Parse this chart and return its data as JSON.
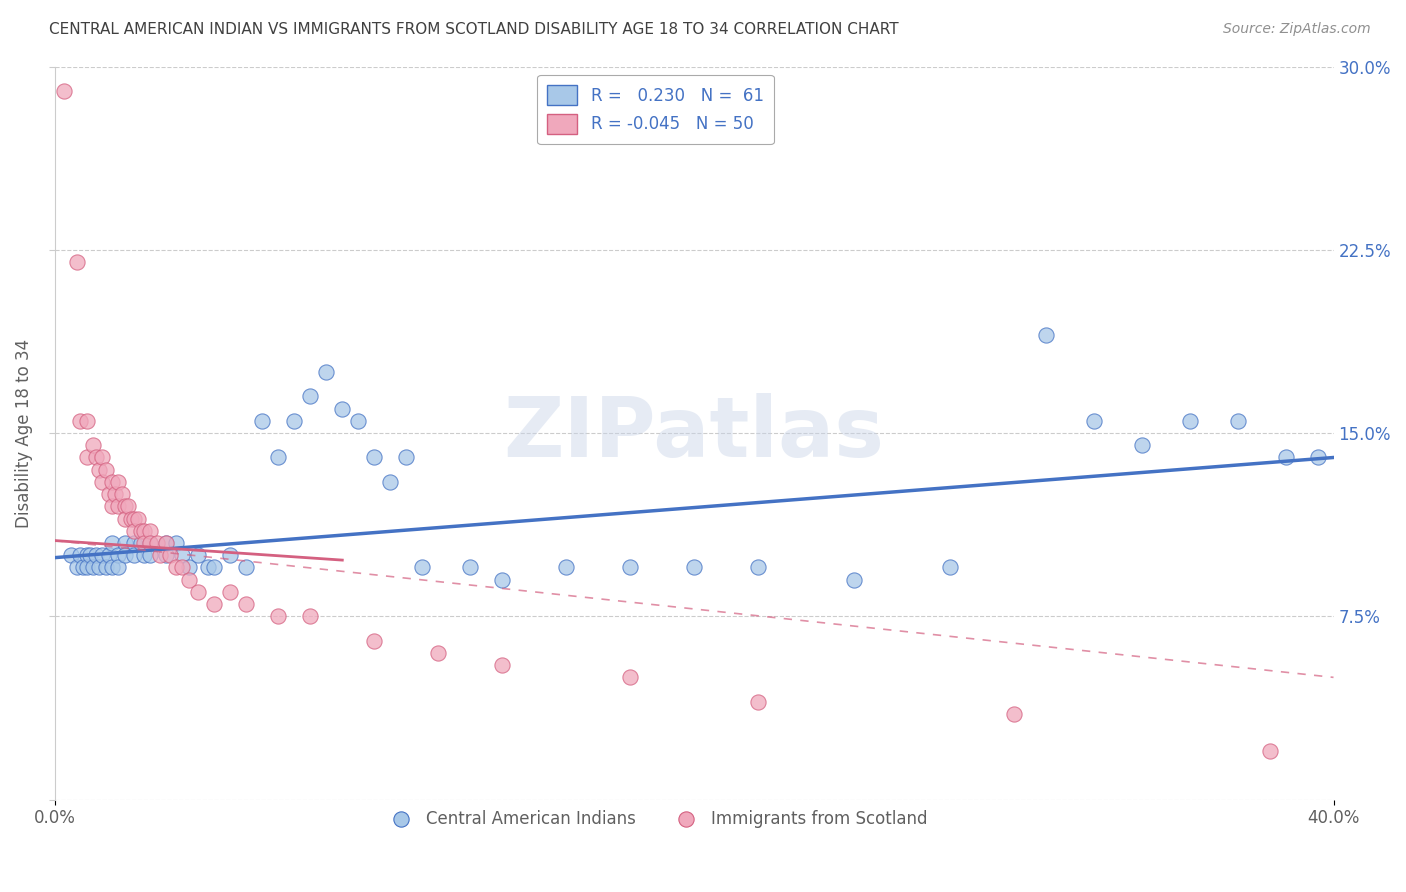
{
  "title": "CENTRAL AMERICAN INDIAN VS IMMIGRANTS FROM SCOTLAND DISABILITY AGE 18 TO 34 CORRELATION CHART",
  "source": "Source: ZipAtlas.com",
  "ylabel": "Disability Age 18 to 34",
  "watermark": "ZIPatlas",
  "legend1_label": "R =   0.230   N =  61",
  "legend2_label": "R = -0.045   N = 50",
  "legend_bottom1": "Central American Indians",
  "legend_bottom2": "Immigrants from Scotland",
  "xlim": [
    0.0,
    0.4
  ],
  "ylim": [
    0.0,
    0.3
  ],
  "xtick_vals": [
    0.0,
    0.4
  ],
  "xtick_labels": [
    "0.0%",
    "40.0%"
  ],
  "ytick_vals": [
    0.0,
    0.075,
    0.15,
    0.225,
    0.3
  ],
  "ytick_labels_right": [
    "",
    "7.5%",
    "15.0%",
    "22.5%",
    "30.0%"
  ],
  "color_blue": "#a8c8e8",
  "color_pink": "#f0a8bc",
  "line_blue": "#4472c4",
  "line_pink": "#d46080",
  "grid_color": "#cccccc",
  "background": "#ffffff",
  "title_color": "#404040",
  "source_color": "#909090",
  "axis_label_color": "#606060",
  "tick_color_right": "#4472c4",
  "blue_scatter": [
    [
      0.005,
      0.1
    ],
    [
      0.007,
      0.095
    ],
    [
      0.008,
      0.1
    ],
    [
      0.009,
      0.095
    ],
    [
      0.01,
      0.1
    ],
    [
      0.01,
      0.095
    ],
    [
      0.011,
      0.1
    ],
    [
      0.012,
      0.095
    ],
    [
      0.013,
      0.1
    ],
    [
      0.014,
      0.095
    ],
    [
      0.015,
      0.1
    ],
    [
      0.016,
      0.095
    ],
    [
      0.017,
      0.1
    ],
    [
      0.018,
      0.095
    ],
    [
      0.018,
      0.105
    ],
    [
      0.02,
      0.1
    ],
    [
      0.02,
      0.095
    ],
    [
      0.022,
      0.105
    ],
    [
      0.022,
      0.1
    ],
    [
      0.025,
      0.105
    ],
    [
      0.025,
      0.1
    ],
    [
      0.027,
      0.105
    ],
    [
      0.028,
      0.1
    ],
    [
      0.03,
      0.105
    ],
    [
      0.03,
      0.1
    ],
    [
      0.035,
      0.105
    ],
    [
      0.035,
      0.1
    ],
    [
      0.038,
      0.105
    ],
    [
      0.04,
      0.1
    ],
    [
      0.042,
      0.095
    ],
    [
      0.045,
      0.1
    ],
    [
      0.048,
      0.095
    ],
    [
      0.05,
      0.095
    ],
    [
      0.055,
      0.1
    ],
    [
      0.06,
      0.095
    ],
    [
      0.065,
      0.155
    ],
    [
      0.07,
      0.14
    ],
    [
      0.075,
      0.155
    ],
    [
      0.08,
      0.165
    ],
    [
      0.085,
      0.175
    ],
    [
      0.09,
      0.16
    ],
    [
      0.095,
      0.155
    ],
    [
      0.1,
      0.14
    ],
    [
      0.105,
      0.13
    ],
    [
      0.11,
      0.14
    ],
    [
      0.115,
      0.095
    ],
    [
      0.13,
      0.095
    ],
    [
      0.14,
      0.09
    ],
    [
      0.16,
      0.095
    ],
    [
      0.18,
      0.095
    ],
    [
      0.2,
      0.095
    ],
    [
      0.22,
      0.095
    ],
    [
      0.25,
      0.09
    ],
    [
      0.28,
      0.095
    ],
    [
      0.31,
      0.19
    ],
    [
      0.325,
      0.155
    ],
    [
      0.34,
      0.145
    ],
    [
      0.355,
      0.155
    ],
    [
      0.37,
      0.155
    ],
    [
      0.385,
      0.14
    ],
    [
      0.395,
      0.14
    ]
  ],
  "pink_scatter": [
    [
      0.003,
      0.29
    ],
    [
      0.007,
      0.22
    ],
    [
      0.008,
      0.155
    ],
    [
      0.01,
      0.155
    ],
    [
      0.01,
      0.14
    ],
    [
      0.012,
      0.145
    ],
    [
      0.013,
      0.14
    ],
    [
      0.014,
      0.135
    ],
    [
      0.015,
      0.14
    ],
    [
      0.015,
      0.13
    ],
    [
      0.016,
      0.135
    ],
    [
      0.017,
      0.125
    ],
    [
      0.018,
      0.13
    ],
    [
      0.018,
      0.12
    ],
    [
      0.019,
      0.125
    ],
    [
      0.02,
      0.13
    ],
    [
      0.02,
      0.12
    ],
    [
      0.021,
      0.125
    ],
    [
      0.022,
      0.12
    ],
    [
      0.022,
      0.115
    ],
    [
      0.023,
      0.12
    ],
    [
      0.024,
      0.115
    ],
    [
      0.025,
      0.115
    ],
    [
      0.025,
      0.11
    ],
    [
      0.026,
      0.115
    ],
    [
      0.027,
      0.11
    ],
    [
      0.028,
      0.11
    ],
    [
      0.028,
      0.105
    ],
    [
      0.03,
      0.11
    ],
    [
      0.03,
      0.105
    ],
    [
      0.032,
      0.105
    ],
    [
      0.033,
      0.1
    ],
    [
      0.035,
      0.105
    ],
    [
      0.036,
      0.1
    ],
    [
      0.038,
      0.095
    ],
    [
      0.04,
      0.095
    ],
    [
      0.042,
      0.09
    ],
    [
      0.045,
      0.085
    ],
    [
      0.05,
      0.08
    ],
    [
      0.055,
      0.085
    ],
    [
      0.06,
      0.08
    ],
    [
      0.07,
      0.075
    ],
    [
      0.08,
      0.075
    ],
    [
      0.1,
      0.065
    ],
    [
      0.12,
      0.06
    ],
    [
      0.14,
      0.055
    ],
    [
      0.18,
      0.05
    ],
    [
      0.22,
      0.04
    ],
    [
      0.3,
      0.035
    ],
    [
      0.38,
      0.02
    ]
  ]
}
